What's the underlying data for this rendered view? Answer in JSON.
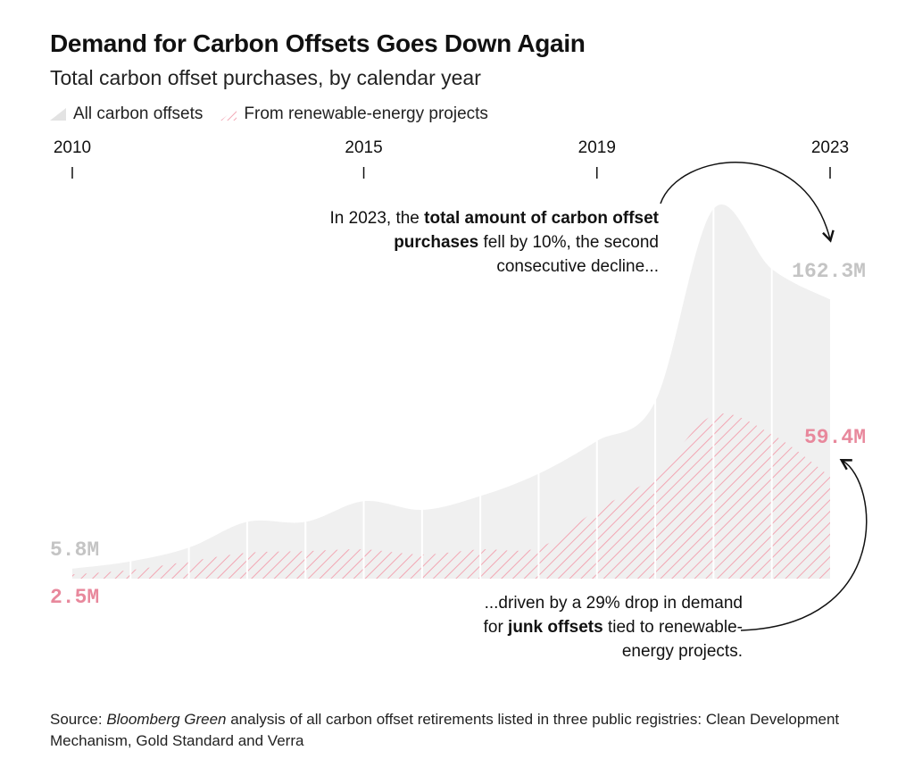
{
  "title": "Demand for Carbon Offsets Goes Down Again",
  "subtitle": "Total carbon offset purchases, by calendar year",
  "legend": {
    "all": "All carbon offsets",
    "renewable": "From renewable-energy projects"
  },
  "annotations": {
    "top": {
      "pre": "In 2023, the ",
      "bold": "total amount of carbon offset purchases",
      "post": " fell by 10%, the second consecutive decline..."
    },
    "bottom": {
      "pre": "...driven by a 29% drop in demand for ",
      "bold": "junk offsets",
      "post": " tied to renewable-energy projects."
    }
  },
  "source": {
    "label": "Source: ",
    "italic": "Bloomberg Green",
    "text": " analysis of all carbon offset retirements listed in three public registries: Clean Development Mechanism, Gold Standard and Verra"
  },
  "colors": {
    "total_fill": "#f0f0f0",
    "renewable_stroke": "#f2a6b3",
    "total_label": "#c4c4c4",
    "renewable_label": "#e8889c"
  },
  "chart_data": {
    "type": "area",
    "x": [
      2010,
      2011,
      2012,
      2013,
      2014,
      2015,
      2016,
      2017,
      2018,
      2019,
      2020,
      2021,
      2022,
      2023
    ],
    "tick_labels": [
      "2010",
      "2015",
      "2019",
      "2023"
    ],
    "series": [
      {
        "name": "All carbon offsets",
        "unit": "M",
        "values": [
          5.8,
          10,
          18,
          33,
          33,
          45,
          40,
          48,
          61,
          80,
          103,
          215,
          180,
          162.3
        ]
      },
      {
        "name": "From renewable-energy projects",
        "unit": "M",
        "values": [
          2.5,
          5,
          10,
          15,
          16,
          17,
          14,
          17,
          18,
          40,
          60,
          95,
          84,
          59.4
        ]
      }
    ],
    "end_labels": {
      "total_start": "5.8M",
      "total_end": "162.3M",
      "renewable_start": "2.5M",
      "renewable_end": "59.4M"
    },
    "ylim": [
      0,
      230
    ],
    "grid": false,
    "legend_position": "top-left"
  }
}
